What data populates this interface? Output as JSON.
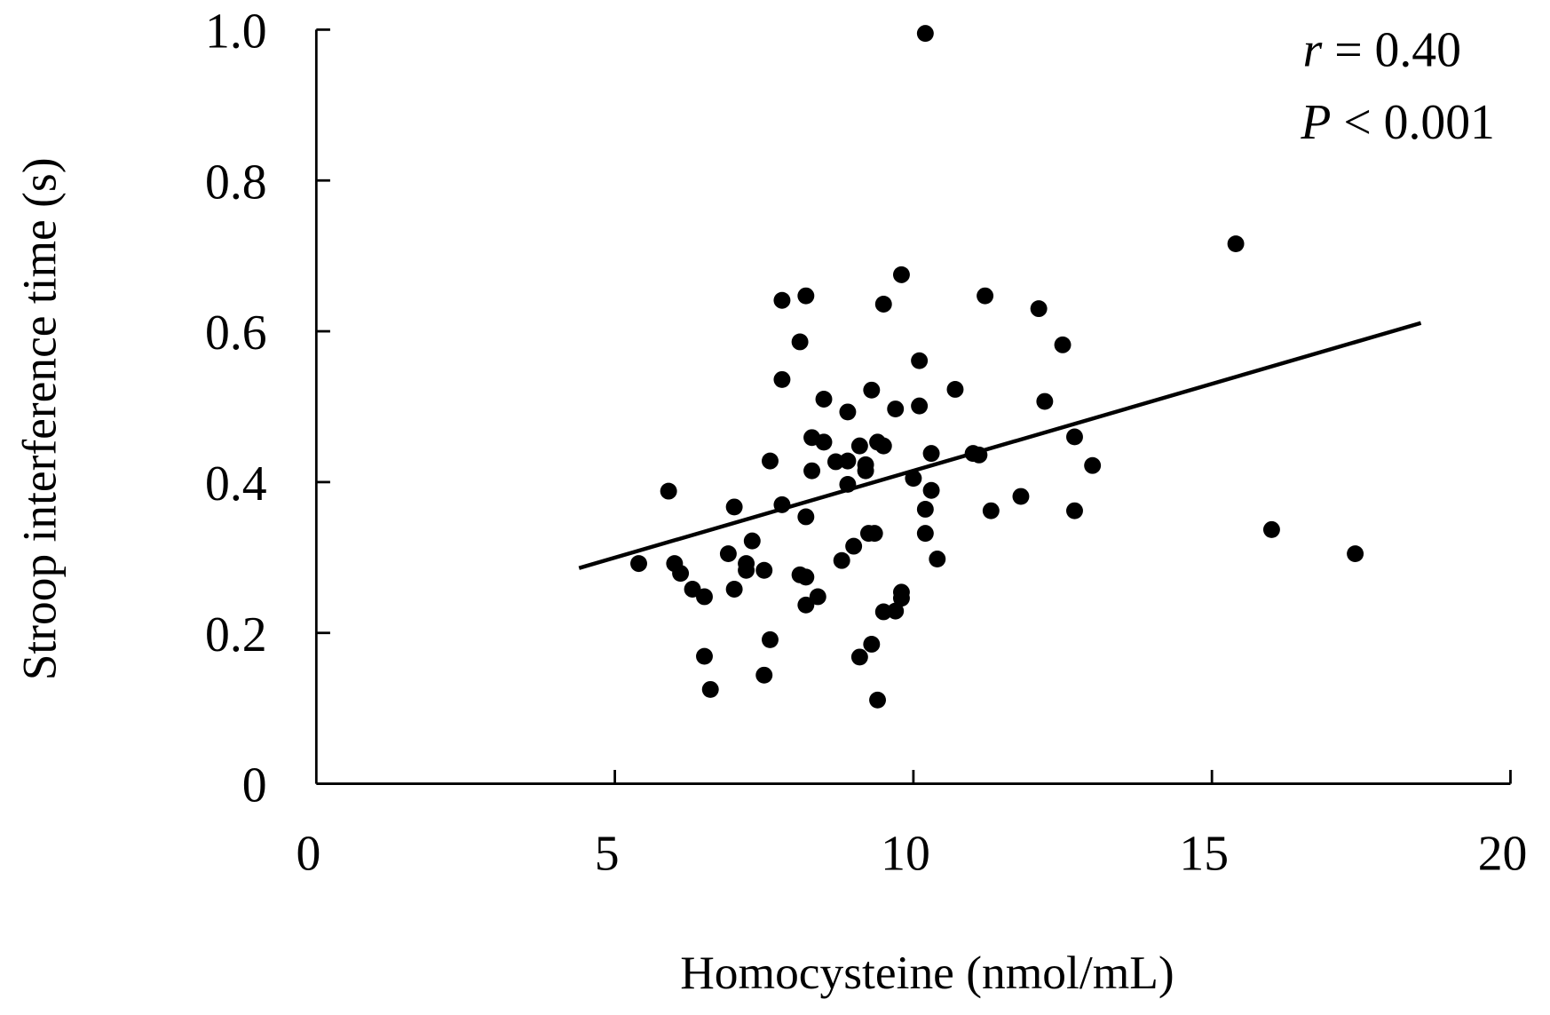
{
  "chart_data": {
    "type": "scatter",
    "xlabel": "Homocysteine (nmol/mL)",
    "ylabel": "Stroop interference time (s)",
    "xlim": [
      0,
      20
    ],
    "ylim": [
      0,
      1.0
    ],
    "xticks": [
      "0",
      "5",
      "10",
      "15",
      "20"
    ],
    "xtick_values": [
      0,
      5,
      10,
      15,
      20
    ],
    "yticks": [
      "0",
      "0.2",
      "0.4",
      "0.6",
      "0.8",
      "1.0"
    ],
    "ytick_values": [
      0,
      0.2,
      0.4,
      0.6,
      0.8,
      1.0
    ],
    "grid": false,
    "annotations": {
      "r_label": "r",
      "r_value": " = 0.40",
      "p_label": "P",
      "p_value": " < 0.001"
    },
    "regression_line": {
      "x": [
        4.4,
        18.5
      ],
      "y": [
        0.286,
        0.611
      ]
    },
    "points": [
      [
        10.2,
        0.995
      ],
      [
        15.4,
        0.716
      ],
      [
        5.4,
        0.292
      ],
      [
        5.9,
        0.388
      ],
      [
        6.0,
        0.292
      ],
      [
        6.1,
        0.279
      ],
      [
        6.3,
        0.258
      ],
      [
        6.5,
        0.248
      ],
      [
        6.5,
        0.169
      ],
      [
        6.6,
        0.125
      ],
      [
        6.9,
        0.305
      ],
      [
        7.0,
        0.367
      ],
      [
        7.0,
        0.258
      ],
      [
        7.2,
        0.292
      ],
      [
        7.3,
        0.322
      ],
      [
        7.2,
        0.283
      ],
      [
        7.5,
        0.283
      ],
      [
        7.5,
        0.144
      ],
      [
        7.6,
        0.191
      ],
      [
        7.6,
        0.428
      ],
      [
        7.8,
        0.536
      ],
      [
        7.8,
        0.641
      ],
      [
        7.8,
        0.37
      ],
      [
        8.1,
        0.586
      ],
      [
        8.2,
        0.647
      ],
      [
        8.1,
        0.277
      ],
      [
        8.2,
        0.274
      ],
      [
        8.2,
        0.354
      ],
      [
        8.2,
        0.237
      ],
      [
        8.3,
        0.459
      ],
      [
        8.3,
        0.415
      ],
      [
        8.4,
        0.248
      ],
      [
        8.5,
        0.453
      ],
      [
        8.5,
        0.51
      ],
      [
        8.7,
        0.427
      ],
      [
        8.8,
        0.296
      ],
      [
        8.9,
        0.428
      ],
      [
        8.9,
        0.493
      ],
      [
        8.9,
        0.397
      ],
      [
        9.0,
        0.315
      ],
      [
        9.1,
        0.448
      ],
      [
        9.1,
        0.168
      ],
      [
        9.2,
        0.423
      ],
      [
        9.2,
        0.415
      ],
      [
        9.3,
        0.522
      ],
      [
        9.25,
        0.332
      ],
      [
        9.35,
        0.332
      ],
      [
        9.3,
        0.185
      ],
      [
        9.4,
        0.111
      ],
      [
        9.4,
        0.453
      ],
      [
        9.5,
        0.448
      ],
      [
        9.5,
        0.636
      ],
      [
        9.5,
        0.228
      ],
      [
        9.7,
        0.497
      ],
      [
        9.7,
        0.229
      ],
      [
        9.8,
        0.675
      ],
      [
        9.8,
        0.254
      ],
      [
        9.8,
        0.246
      ],
      [
        10.0,
        0.405
      ],
      [
        10.1,
        0.501
      ],
      [
        10.1,
        0.561
      ],
      [
        10.2,
        0.364
      ],
      [
        10.2,
        0.332
      ],
      [
        10.3,
        0.438
      ],
      [
        10.3,
        0.389
      ],
      [
        10.4,
        0.298
      ],
      [
        10.7,
        0.523
      ],
      [
        11.0,
        0.438
      ],
      [
        11.1,
        0.436
      ],
      [
        11.2,
        0.647
      ],
      [
        11.3,
        0.362
      ],
      [
        11.8,
        0.381
      ],
      [
        12.1,
        0.63
      ],
      [
        12.2,
        0.507
      ],
      [
        12.5,
        0.582
      ],
      [
        12.7,
        0.46
      ],
      [
        12.7,
        0.362
      ],
      [
        13.0,
        0.422
      ],
      [
        16.0,
        0.337
      ],
      [
        17.4,
        0.305
      ]
    ]
  }
}
